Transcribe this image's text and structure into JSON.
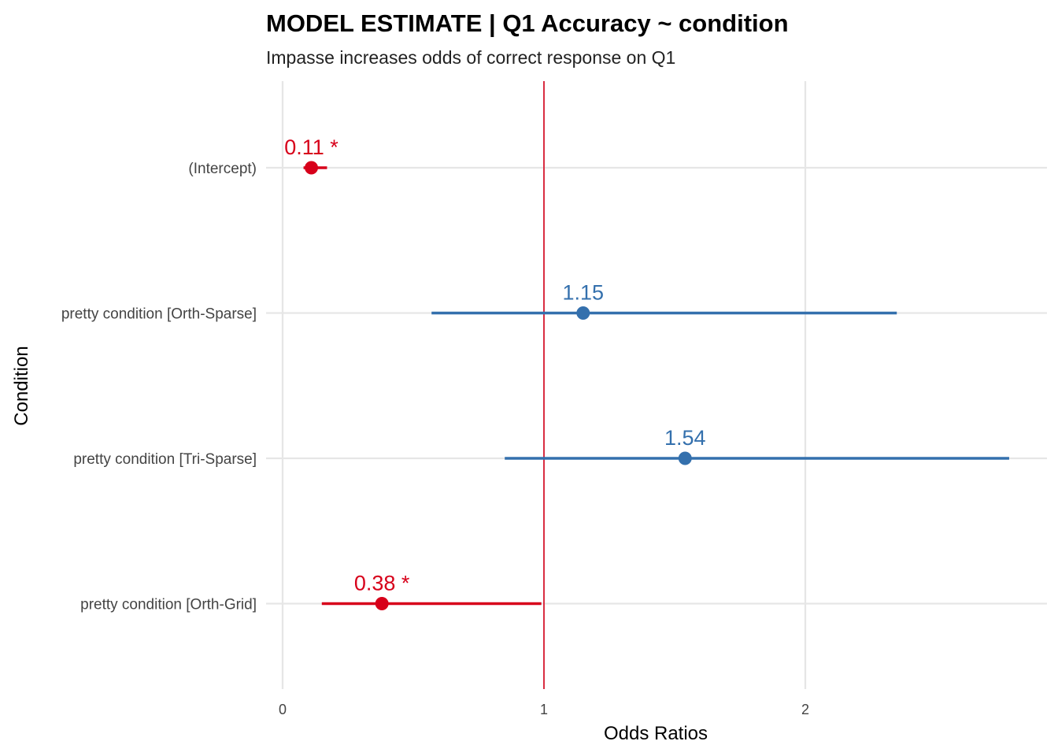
{
  "chart_data": {
    "type": "forest",
    "title": "MODEL ESTIMATE | Q1 Accuracy ~ condition",
    "subtitle": "Impasse increases odds of correct response on Q1",
    "xlabel": "Odds Ratios",
    "ylabel": "Condition",
    "xlim": [
      0,
      2.9
    ],
    "x_ticks": [
      "0",
      "1",
      "2"
    ],
    "reference_line": 1,
    "grid": true,
    "colors": {
      "significant": "#d7001a",
      "nonsignificant": "#3470ad",
      "reference": "#d7001a",
      "grid": "#e6e6e6"
    },
    "terms": [
      {
        "name": "(Intercept)",
        "estimate": 0.11,
        "ci_low": 0.08,
        "ci_high": 0.17,
        "label": "0.11 *",
        "significant": true
      },
      {
        "name": "pretty condition [Orth-Sparse]",
        "estimate": 1.15,
        "ci_low": 0.57,
        "ci_high": 2.35,
        "label": "1.15",
        "significant": false
      },
      {
        "name": "pretty condition [Tri-Sparse]",
        "estimate": 1.54,
        "ci_low": 0.85,
        "ci_high": 2.78,
        "label": "1.54",
        "significant": false
      },
      {
        "name": "pretty condition [Orth-Grid]",
        "estimate": 0.38,
        "ci_low": 0.15,
        "ci_high": 0.99,
        "label": "0.38 *",
        "significant": true
      }
    ]
  }
}
